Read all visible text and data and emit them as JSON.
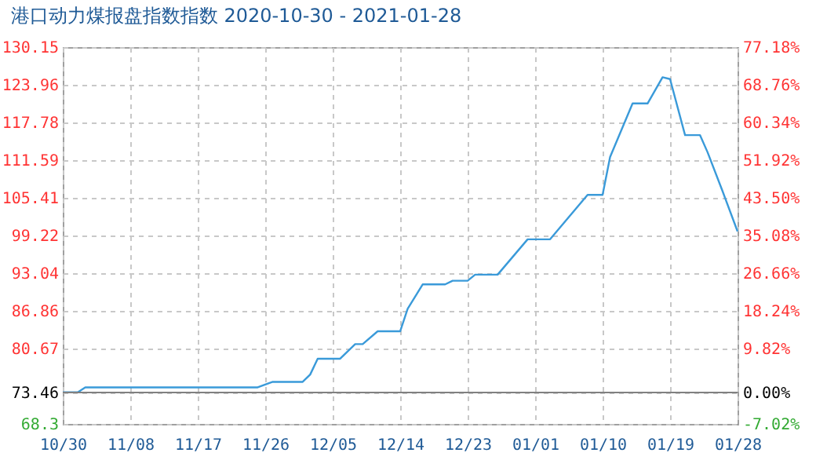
{
  "chart_data": {
    "type": "line",
    "title": "港口动力煤报盘指数指数 2020-10-30 - 2021-01-28",
    "x": [
      "2020-10-30",
      "2020-11-01",
      "2020-11-02",
      "2020-11-25",
      "2020-11-27",
      "2020-12-01",
      "2020-12-02",
      "2020-12-03",
      "2020-12-06",
      "2020-12-08",
      "2020-12-09",
      "2020-12-11",
      "2020-12-14",
      "2020-12-15",
      "2020-12-17",
      "2020-12-20",
      "2020-12-21",
      "2020-12-23",
      "2020-12-24",
      "2020-12-27",
      "2020-12-31",
      "2021-01-03",
      "2021-01-08",
      "2021-01-10",
      "2021-01-11",
      "2021-01-14",
      "2021-01-16",
      "2021-01-18",
      "2021-01-19",
      "2021-01-21",
      "2021-01-23",
      "2021-01-24",
      "2021-01-26",
      "2021-01-28"
    ],
    "series": [
      {
        "color": "#3a9ad9",
        "values": [
          73.5,
          73.5,
          74.3,
          74.3,
          75.2,
          75.2,
          76.4,
          79.0,
          79.0,
          81.4,
          81.4,
          83.5,
          83.5,
          87.2,
          91.2,
          91.2,
          91.8,
          91.8,
          92.8,
          92.8,
          98.6,
          98.6,
          105.9,
          105.9,
          112.1,
          120.9,
          120.9,
          125.2,
          124.9,
          115.7,
          115.7,
          112.9,
          106.5,
          99.9
        ]
      }
    ],
    "xlim": [
      "2020-10-30",
      "2021-01-28"
    ],
    "xticks": [
      {
        "value": "2020-10-30",
        "label": "10/30"
      },
      {
        "value": "2020-11-08",
        "label": "11/08"
      },
      {
        "value": "2020-11-17",
        "label": "11/17"
      },
      {
        "value": "2020-11-26",
        "label": "11/26"
      },
      {
        "value": "2020-12-05",
        "label": "12/05"
      },
      {
        "value": "2020-12-14",
        "label": "12/14"
      },
      {
        "value": "2020-12-23",
        "label": "12/23"
      },
      {
        "value": "2021-01-01",
        "label": "01/01"
      },
      {
        "value": "2021-01-10",
        "label": "01/10"
      },
      {
        "value": "2021-01-19",
        "label": "01/19"
      },
      {
        "value": "2021-01-28",
        "label": "01/28"
      }
    ],
    "ylim": [
      68.3,
      130.15
    ],
    "yticks": [
      68.3,
      73.46,
      80.67,
      86.86,
      93.04,
      99.22,
      105.41,
      111.59,
      117.78,
      123.96,
      130.15
    ],
    "y2lim": [
      -7.02,
      77.18
    ],
    "y2ticks": [
      {
        "value": -7.02,
        "label": "-7.02%"
      },
      {
        "value": 0,
        "label": "0.00%"
      },
      {
        "value": 9.82,
        "label": "9.82%"
      },
      {
        "value": 18.24,
        "label": "18.24%"
      },
      {
        "value": 26.66,
        "label": "26.66%"
      },
      {
        "value": 35.08,
        "label": "35.08%"
      },
      {
        "value": 43.5,
        "label": "43.50%"
      },
      {
        "value": 51.92,
        "label": "51.92%"
      },
      {
        "value": 60.34,
        "label": "60.34%"
      },
      {
        "value": 68.76,
        "label": "68.76%"
      },
      {
        "value": 77.18,
        "label": "77.18%"
      }
    ],
    "ref_lines": [
      {
        "axis": "y",
        "value": 73.46,
        "color": "#808080"
      }
    ],
    "grid": true,
    "marker": "none",
    "line_style": "solid"
  }
}
